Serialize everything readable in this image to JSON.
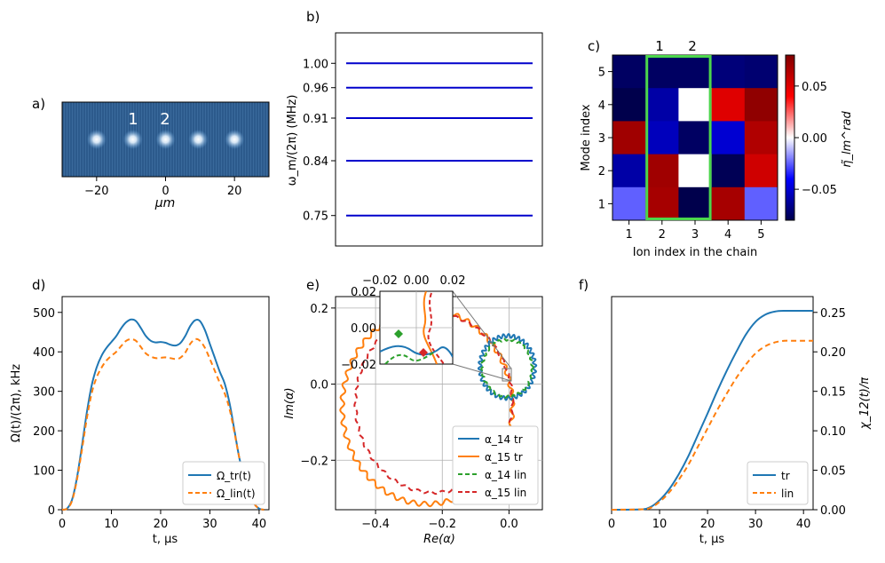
{
  "panel_labels": {
    "a": "a)",
    "b": "b)",
    "c": "c)",
    "d": "d)",
    "e": "e)",
    "f": "f)"
  },
  "chart_data": [
    {
      "panel": "a",
      "type": "image",
      "description_labels": [
        "1",
        "2"
      ],
      "ion_positions": [
        -20,
        -9.5,
        0,
        9.5,
        20
      ],
      "xticks": [
        -20,
        0,
        20
      ],
      "xtick_labels": [
        "−20",
        "0",
        "20"
      ],
      "xlim": [
        -30,
        30
      ],
      "xlabel": "μm",
      "background_color": "#2f5d8f",
      "ion_color": "#ffffff"
    },
    {
      "panel": "b",
      "type": "levels",
      "values": [
        1.0,
        0.96,
        0.91,
        0.84,
        0.75
      ],
      "ytick_labels": [
        "1.00",
        "0.96",
        "0.91",
        "0.84",
        "0.75"
      ],
      "ylim": [
        0.7,
        1.05
      ],
      "ylabel": "ω_m/(2π) (MHz)",
      "line_color": "#0000cc"
    },
    {
      "panel": "c",
      "type": "heatmap",
      "top_labels": [
        "1",
        "2"
      ],
      "xlabel": "Ion index in the chain",
      "ylabel": "Mode index",
      "xticks": [
        "1",
        "2",
        "3",
        "4",
        "5"
      ],
      "yticks": [
        "1",
        "2",
        "3",
        "4",
        "5"
      ],
      "rows_top_to_bottom": [
        [
          -0.075,
          -0.075,
          -0.075,
          -0.07,
          -0.072
        ],
        [
          -0.08,
          -0.06,
          0.0,
          0.05,
          0.075
        ],
        [
          0.07,
          -0.055,
          -0.075,
          -0.05,
          0.065
        ],
        [
          -0.06,
          0.07,
          0.0,
          -0.078,
          0.055
        ],
        [
          -0.025,
          0.068,
          -0.085,
          0.068,
          -0.025
        ]
      ],
      "vmin": -0.08,
      "vmax": 0.08,
      "highlight_columns": [
        2,
        3
      ],
      "highlight_color": "#4cd64c",
      "colorbar_ticks": [
        0.05,
        0.0,
        -0.05
      ],
      "colorbar_tick_labels": [
        "0.05",
        "0.00",
        "−0.05"
      ],
      "colorbar_label": "η̃_lm^rad"
    },
    {
      "panel": "d",
      "type": "line",
      "xlabel": "t, μs",
      "ylabel": "Ω(t)/(2π), kHz",
      "xlim": [
        0,
        42
      ],
      "ylim": [
        0,
        540
      ],
      "xticks": [
        0,
        10,
        20,
        30,
        40
      ],
      "yticks": [
        0,
        100,
        200,
        300,
        400,
        500
      ],
      "series": [
        {
          "name": "Ω_tr(t)",
          "color": "#1f77b4",
          "dash": "solid",
          "x": [
            0,
            1,
            2,
            3,
            4,
            5,
            6,
            7,
            8,
            9,
            10,
            11,
            12,
            13,
            14,
            15,
            16,
            17,
            18,
            19,
            20,
            21,
            22,
            23,
            24,
            25,
            26,
            27,
            28,
            29,
            30,
            31,
            32,
            33,
            34,
            35,
            36,
            37,
            38,
            39,
            40,
            41
          ],
          "y": [
            0,
            3,
            25,
            80,
            160,
            245,
            315,
            360,
            390,
            410,
            425,
            440,
            460,
            475,
            482,
            478,
            460,
            440,
            428,
            424,
            425,
            423,
            418,
            416,
            422,
            440,
            465,
            480,
            478,
            455,
            420,
            385,
            350,
            320,
            270,
            200,
            130,
            80,
            40,
            15,
            3,
            0
          ]
        },
        {
          "name": "Ω_lin(t)",
          "color": "#ff7f0e",
          "dash": "dashed",
          "x": [
            0,
            1,
            2,
            3,
            4,
            5,
            6,
            7,
            8,
            9,
            10,
            11,
            12,
            13,
            14,
            15,
            16,
            17,
            18,
            19,
            20,
            21,
            22,
            23,
            24,
            25,
            26,
            27,
            28,
            29,
            30,
            31,
            32,
            33,
            34,
            35,
            36,
            37,
            38,
            39,
            40,
            41
          ],
          "y": [
            0,
            3,
            22,
            75,
            150,
            230,
            295,
            335,
            360,
            378,
            390,
            400,
            415,
            428,
            432,
            428,
            412,
            396,
            388,
            384,
            385,
            386,
            384,
            382,
            385,
            398,
            420,
            432,
            428,
            410,
            382,
            352,
            322,
            295,
            255,
            195,
            130,
            80,
            40,
            15,
            3,
            0
          ]
        }
      ],
      "legend": [
        "Ω_tr(t)",
        "Ω_lin(t)"
      ]
    },
    {
      "panel": "e",
      "type": "phase_space",
      "xlabel": "Re(α)",
      "ylabel": "Im(α)",
      "xlim": [
        -0.52,
        0.1
      ],
      "ylim": [
        -0.33,
        0.23
      ],
      "xticks": [
        -0.4,
        -0.2,
        0.0
      ],
      "xtick_labels": [
        "−0.4",
        "−0.2",
        "0.0"
      ],
      "yticks": [
        -0.2,
        0.0,
        0.2
      ],
      "ytick_labels": [
        "−0.2",
        "0.0",
        "0.2"
      ],
      "series": [
        {
          "name": "α_14 tr",
          "color": "#1f77b4",
          "dash": "solid"
        },
        {
          "name": "α_15 tr",
          "color": "#ff7f0e",
          "dash": "solid"
        },
        {
          "name": "α_14 lin",
          "color": "#2ca02c",
          "dash": "dashed"
        },
        {
          "name": "α_15 lin",
          "color": "#d62728",
          "dash": "dashed"
        }
      ],
      "legend": [
        "α_14 tr",
        "α_15 tr",
        "α_14 lin",
        "α_15 lin"
      ],
      "inset": {
        "xlim": [
          -0.025,
          0.025
        ],
        "ylim": [
          -0.025,
          0.025
        ],
        "xtick_labels": [
          "−0.02",
          "0.00",
          "0.02"
        ],
        "ytick_labels": [
          "0.02",
          "0.00",
          "−0.02"
        ]
      }
    },
    {
      "panel": "f",
      "type": "line",
      "xlabel": "t, μs",
      "ylabel": "χ_12(t)/π",
      "xlim": [
        0,
        42
      ],
      "ylim": [
        0,
        0.27
      ],
      "xticks": [
        0,
        10,
        20,
        30,
        40
      ],
      "yticks": [
        0.0,
        0.05,
        0.1,
        0.15,
        0.2,
        0.25
      ],
      "ytick_labels": [
        "0.00",
        "0.05",
        "0.10",
        "0.15",
        "0.20",
        "0.25"
      ],
      "series": [
        {
          "name": "tr",
          "color": "#1f77b4",
          "dash": "solid",
          "x": [
            0,
            6,
            8,
            10,
            12,
            14,
            16,
            18,
            20,
            22,
            24,
            26,
            28,
            30,
            32,
            34,
            36,
            38,
            40,
            42
          ],
          "y": [
            0,
            0.0005,
            0.003,
            0.012,
            0.026,
            0.045,
            0.068,
            0.095,
            0.122,
            0.15,
            0.176,
            0.2,
            0.222,
            0.238,
            0.247,
            0.251,
            0.252,
            0.252,
            0.252,
            0.252
          ]
        },
        {
          "name": "lin",
          "color": "#ff7f0e",
          "dash": "dashed",
          "x": [
            0,
            6,
            8,
            10,
            12,
            14,
            16,
            18,
            20,
            22,
            24,
            26,
            28,
            30,
            32,
            34,
            36,
            38,
            40,
            42
          ],
          "y": [
            0,
            0.0004,
            0.002,
            0.01,
            0.022,
            0.038,
            0.057,
            0.08,
            0.103,
            0.126,
            0.147,
            0.167,
            0.184,
            0.198,
            0.207,
            0.212,
            0.214,
            0.214,
            0.214,
            0.214
          ]
        }
      ],
      "legend": [
        "tr",
        "lin"
      ]
    }
  ]
}
